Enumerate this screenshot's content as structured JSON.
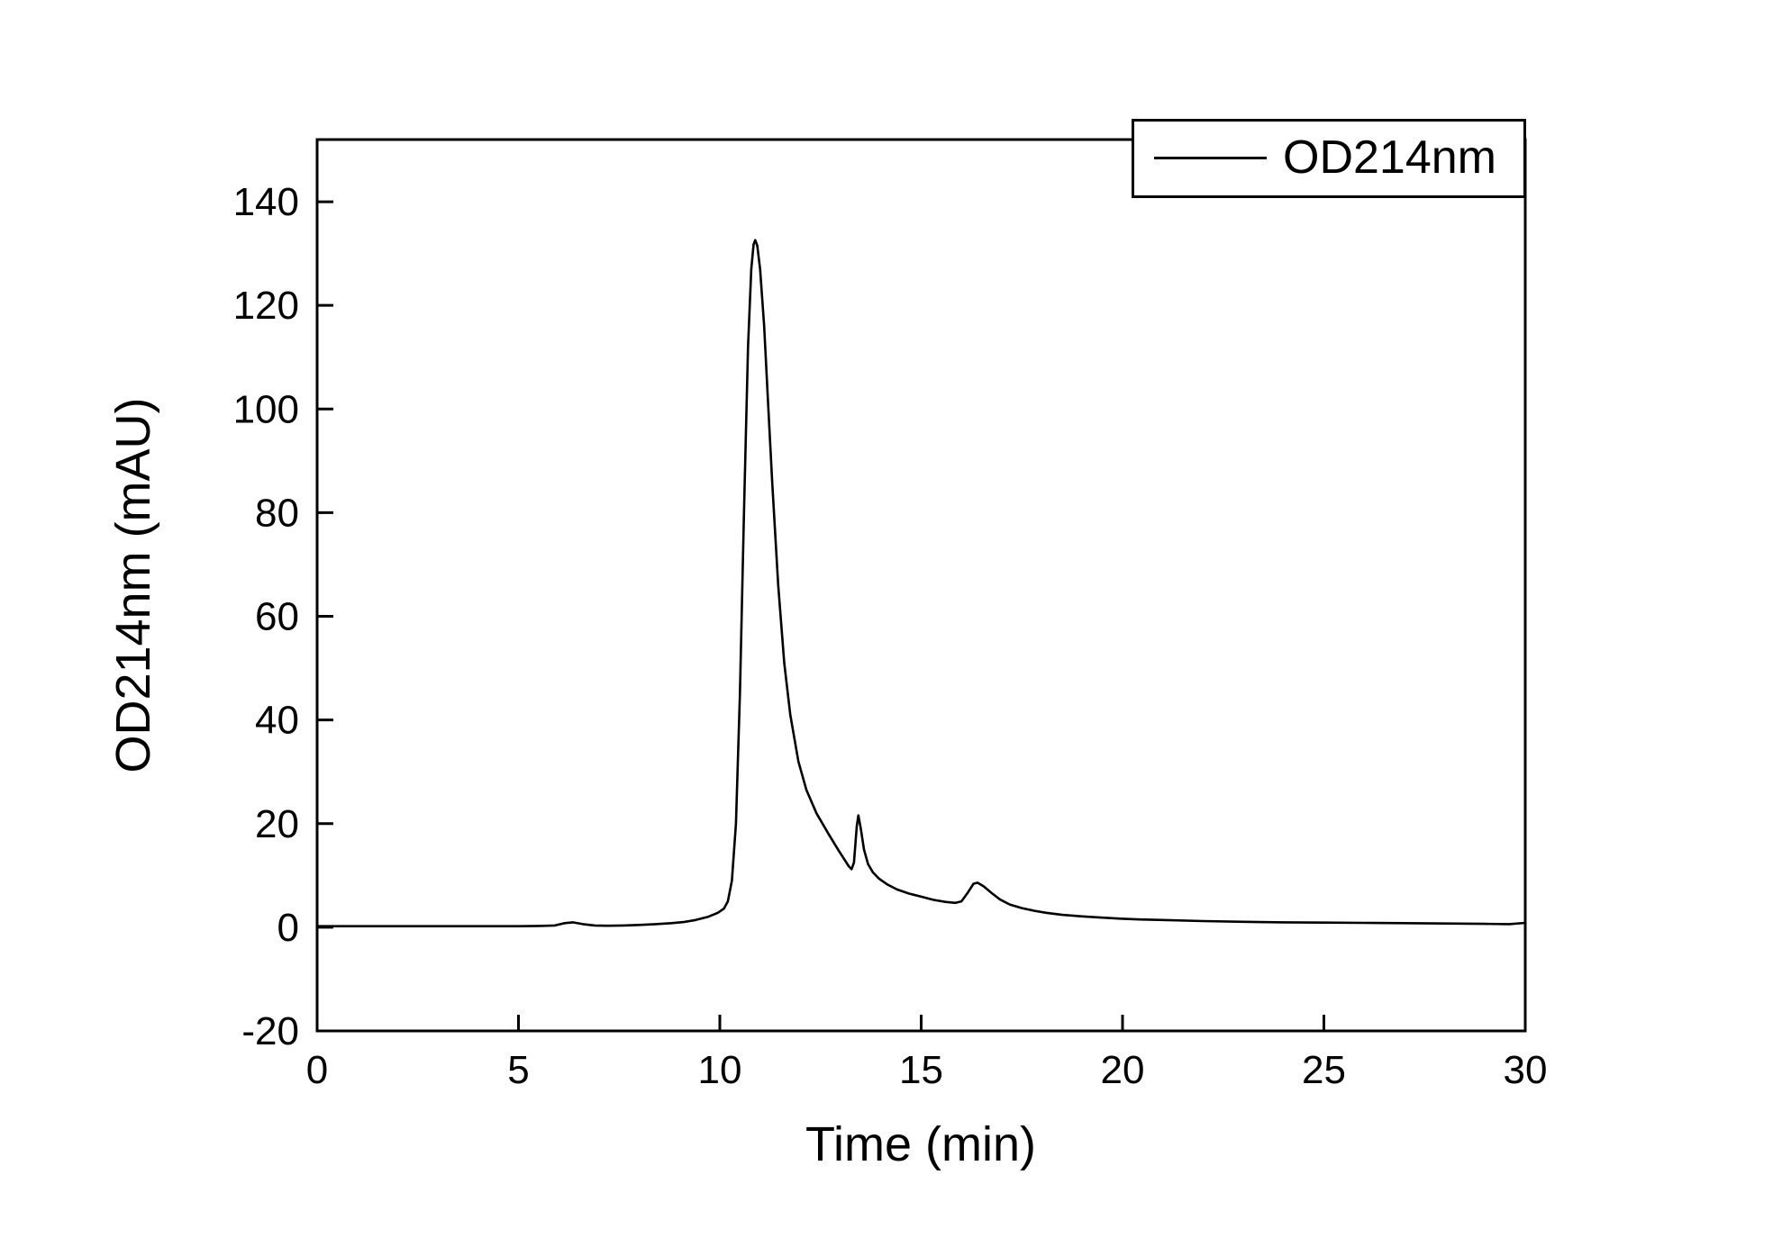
{
  "chart_data": {
    "type": "line",
    "title": "",
    "xlabel": "Time (min)",
    "ylabel": "OD214nm (mAU)",
    "xlim": [
      0,
      30
    ],
    "ylim": [
      -20,
      152
    ],
    "x_ticks": [
      0,
      5,
      10,
      15,
      20,
      25,
      30
    ],
    "y_ticks": [
      -20,
      0,
      20,
      40,
      60,
      80,
      100,
      120,
      140
    ],
    "grid": false,
    "legend_position": "top-right",
    "line_color": "#000000",
    "background": "#ffffff",
    "series": [
      {
        "name": "OD214nm",
        "points": [
          [
            0,
            0.2
          ],
          [
            0.5,
            0.2
          ],
          [
            1,
            0.2
          ],
          [
            1.5,
            0.2
          ],
          [
            2,
            0.2
          ],
          [
            2.5,
            0.2
          ],
          [
            3,
            0.2
          ],
          [
            3.5,
            0.2
          ],
          [
            4,
            0.2
          ],
          [
            4.5,
            0.2
          ],
          [
            5,
            0.2
          ],
          [
            5.5,
            0.25
          ],
          [
            5.9,
            0.35
          ],
          [
            6.15,
            0.8
          ],
          [
            6.35,
            0.95
          ],
          [
            6.6,
            0.6
          ],
          [
            6.9,
            0.35
          ],
          [
            7.2,
            0.3
          ],
          [
            7.6,
            0.35
          ],
          [
            8,
            0.45
          ],
          [
            8.4,
            0.6
          ],
          [
            8.8,
            0.8
          ],
          [
            9.1,
            1.0
          ],
          [
            9.4,
            1.4
          ],
          [
            9.7,
            2.0
          ],
          [
            9.95,
            2.8
          ],
          [
            10.1,
            3.6
          ],
          [
            10.2,
            5
          ],
          [
            10.3,
            9
          ],
          [
            10.4,
            20
          ],
          [
            10.5,
            45
          ],
          [
            10.6,
            80
          ],
          [
            10.7,
            112
          ],
          [
            10.78,
            127
          ],
          [
            10.84,
            131.8
          ],
          [
            10.88,
            132.6
          ],
          [
            10.93,
            131.5
          ],
          [
            11.0,
            127
          ],
          [
            11.1,
            116
          ],
          [
            11.2,
            101
          ],
          [
            11.3,
            86
          ],
          [
            11.45,
            66
          ],
          [
            11.6,
            51
          ],
          [
            11.75,
            41
          ],
          [
            11.95,
            32
          ],
          [
            12.15,
            26.5
          ],
          [
            12.4,
            22
          ],
          [
            12.7,
            18
          ],
          [
            12.95,
            14.8
          ],
          [
            13.1,
            13
          ],
          [
            13.2,
            11.8
          ],
          [
            13.27,
            11.2
          ],
          [
            13.33,
            12.5
          ],
          [
            13.4,
            19.5
          ],
          [
            13.44,
            21.6
          ],
          [
            13.5,
            19
          ],
          [
            13.58,
            15
          ],
          [
            13.68,
            12.2
          ],
          [
            13.8,
            10.6
          ],
          [
            13.95,
            9.4
          ],
          [
            14.15,
            8.3
          ],
          [
            14.4,
            7.3
          ],
          [
            14.7,
            6.5
          ],
          [
            15,
            5.9
          ],
          [
            15.3,
            5.3
          ],
          [
            15.6,
            4.9
          ],
          [
            15.85,
            4.7
          ],
          [
            16.0,
            5.0
          ],
          [
            16.15,
            6.6
          ],
          [
            16.3,
            8.4
          ],
          [
            16.4,
            8.6
          ],
          [
            16.55,
            7.9
          ],
          [
            16.75,
            6.6
          ],
          [
            16.95,
            5.4
          ],
          [
            17.2,
            4.4
          ],
          [
            17.5,
            3.7
          ],
          [
            17.8,
            3.2
          ],
          [
            18.1,
            2.8
          ],
          [
            18.5,
            2.4
          ],
          [
            19,
            2.1
          ],
          [
            19.5,
            1.85
          ],
          [
            20,
            1.65
          ],
          [
            20.5,
            1.5
          ],
          [
            21,
            1.4
          ],
          [
            22,
            1.2
          ],
          [
            23,
            1.05
          ],
          [
            24,
            0.95
          ],
          [
            25,
            0.9
          ],
          [
            26,
            0.85
          ],
          [
            27,
            0.8
          ],
          [
            28,
            0.72
          ],
          [
            29,
            0.65
          ],
          [
            29.6,
            0.6
          ],
          [
            30,
            0.85
          ]
        ]
      }
    ]
  }
}
